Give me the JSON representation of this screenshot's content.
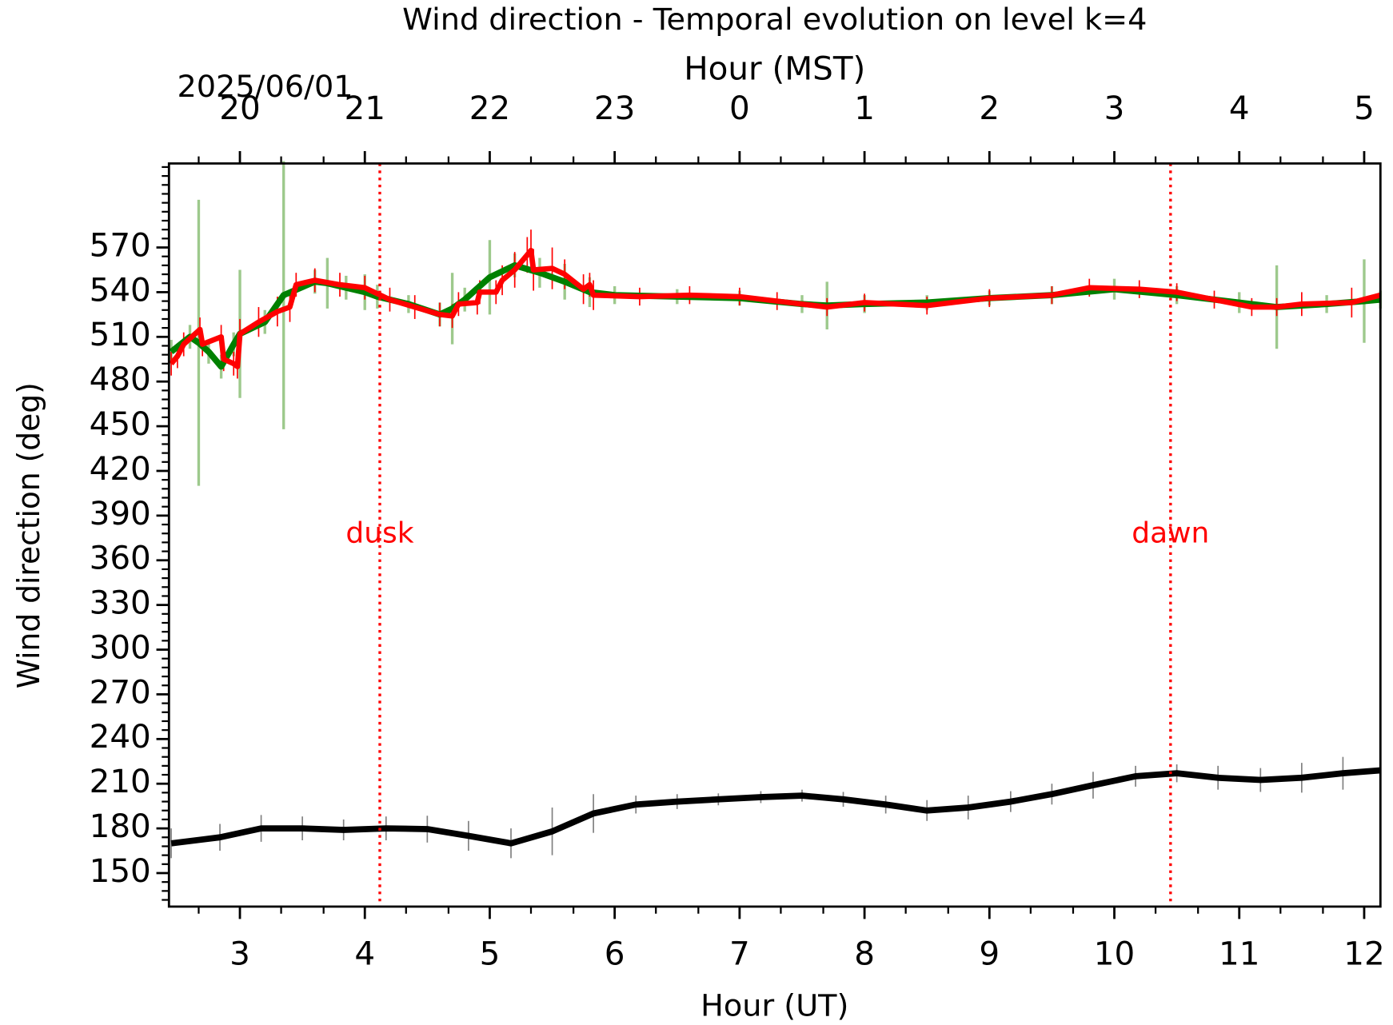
{
  "chart_data": {
    "type": "line",
    "title": "Wind direction - Temporal evolution on level k=4",
    "xlabel": "Hour (UT)",
    "x2label": "Hour (MST)",
    "date_label": "2025/06/01",
    "ylabel": "Wind direction (deg)",
    "xlim": [
      2.432,
      12.13
    ],
    "ylim": [
      127.5,
      626.4
    ],
    "xticks": [
      3,
      4,
      5,
      6,
      7,
      8,
      9,
      10,
      11,
      12
    ],
    "x2ticks": [
      {
        "value": 3,
        "label": "20"
      },
      {
        "value": 4,
        "label": "21"
      },
      {
        "value": 5,
        "label": "22"
      },
      {
        "value": 6,
        "label": "23"
      },
      {
        "value": 7,
        "label": "0"
      },
      {
        "value": 8,
        "label": "1"
      },
      {
        "value": 9,
        "label": "2"
      },
      {
        "value": 10,
        "label": "3"
      },
      {
        "value": 11,
        "label": "4"
      },
      {
        "value": 12,
        "label": "5"
      }
    ],
    "xminorticks": [
      2.67,
      3.33,
      3.67,
      4.33,
      4.67,
      5.33,
      5.67,
      6.33,
      6.67,
      7.33,
      7.67,
      8.33,
      8.67,
      9.33,
      9.67,
      10.33,
      10.67,
      11.33,
      11.67
    ],
    "yticks": [
      150,
      180,
      210,
      240,
      270,
      300,
      330,
      360,
      390,
      420,
      450,
      480,
      510,
      540,
      570
    ],
    "yminorticks": [
      132,
      138,
      144,
      156,
      162,
      168,
      174,
      186,
      192,
      198,
      204,
      216,
      222,
      228,
      234,
      246,
      252,
      258,
      264,
      276,
      282,
      288,
      294,
      306,
      312,
      318,
      324,
      336,
      342,
      348,
      354,
      366,
      372,
      378,
      384,
      396,
      402,
      408,
      414,
      426,
      432,
      438,
      444,
      456,
      462,
      468,
      474,
      486,
      492,
      498,
      504,
      516,
      522,
      528,
      534,
      546,
      552,
      558,
      564,
      576,
      582,
      588,
      594,
      600,
      606,
      612,
      618,
      624
    ],
    "events": [
      {
        "name": "dusk",
        "x": 4.12,
        "color": "#ff0000"
      },
      {
        "name": "dawn",
        "x": 10.45,
        "color": "#ff0000"
      }
    ],
    "series": [
      {
        "color": "#000000",
        "error_color": "#808080",
        "width": 7,
        "x": [
          2.45,
          2.84,
          3.17,
          3.5,
          3.83,
          4.17,
          4.5,
          4.83,
          5.17,
          5.5,
          5.83,
          6.17,
          6.5,
          6.83,
          7.17,
          7.5,
          7.83,
          8.17,
          8.5,
          8.83,
          9.17,
          9.5,
          9.83,
          10.17,
          10.5,
          10.83,
          11.17,
          11.5,
          11.83,
          12.13
        ],
        "values": [
          170,
          174,
          180,
          180,
          179,
          180,
          179.5,
          175,
          170,
          178,
          190,
          196,
          198,
          199.5,
          201,
          202,
          199.5,
          196,
          192,
          194,
          198,
          203,
          209,
          215,
          217,
          214,
          212.5,
          214,
          217,
          219
        ],
        "errors": [
          10,
          9,
          9,
          8,
          7,
          8,
          9,
          10,
          10,
          16,
          13,
          6,
          5,
          4,
          4,
          4,
          5,
          6,
          7,
          8,
          7,
          7,
          9,
          7,
          6,
          8,
          8,
          10,
          11,
          8
        ]
      },
      {
        "color": "#008000",
        "error_color": "#9dc98c",
        "width": 7,
        "x": [
          2.45,
          2.6,
          2.67,
          2.75,
          2.85,
          2.95,
          3.0,
          3.2,
          3.35,
          3.6,
          3.7,
          3.85,
          4.0,
          4.1,
          4.35,
          4.6,
          4.7,
          4.8,
          5.0,
          5.2,
          5.4,
          5.6,
          5.8,
          6.0,
          6.5,
          7.0,
          7.5,
          7.7,
          8.0,
          8.5,
          9.0,
          9.5,
          10.0,
          10.5,
          11.0,
          11.3,
          11.7,
          12.0,
          12.13
        ],
        "values": [
          500,
          510,
          506,
          500,
          490,
          505,
          512,
          520,
          538,
          547,
          546,
          543,
          540,
          537,
          532,
          525,
          529,
          535,
          550,
          558,
          553,
          547,
          540,
          538,
          537,
          536,
          532,
          531,
          532,
          533,
          536,
          538,
          542,
          538,
          533,
          530,
          532,
          534,
          535
        ],
        "errors": [
          8,
          8,
          96,
          8,
          8,
          8,
          43,
          8,
          90,
          8,
          17,
          8,
          12,
          8,
          6,
          8,
          24,
          8,
          25,
          8,
          10,
          12,
          10,
          6,
          5,
          5,
          6,
          16,
          6,
          5,
          5,
          6,
          7,
          6,
          7,
          28,
          6,
          28,
          6
        ]
      },
      {
        "color": "#ff0000",
        "error_color": "#ff0000",
        "width": 6,
        "x": [
          2.45,
          2.5,
          2.55,
          2.68,
          2.7,
          2.85,
          2.87,
          2.95,
          2.98,
          3.0,
          3.15,
          3.3,
          3.4,
          3.45,
          3.6,
          3.8,
          4.0,
          4.2,
          4.4,
          4.6,
          4.7,
          4.75,
          4.9,
          4.92,
          5.05,
          5.1,
          5.2,
          5.3,
          5.33,
          5.35,
          5.5,
          5.6,
          5.75,
          5.8,
          5.83,
          6.2,
          6.6,
          7.0,
          7.3,
          7.7,
          8.0,
          8.5,
          9.0,
          9.5,
          9.8,
          10.2,
          10.5,
          10.8,
          11.1,
          11.3,
          11.5,
          11.9,
          12.13
        ],
        "values": [
          492,
          497,
          505,
          515,
          505,
          510,
          495,
          492,
          490,
          512,
          520,
          527,
          530,
          545,
          548,
          545,
          543,
          535,
          530,
          525,
          524,
          532,
          533,
          540,
          540,
          548,
          555,
          565,
          568,
          555,
          556,
          552,
          542,
          545,
          538,
          537,
          538,
          537,
          534,
          530,
          533,
          531,
          536,
          538,
          543,
          542,
          540,
          535,
          530,
          530,
          532,
          533,
          538
        ],
        "errors": [
          8,
          8,
          8,
          8,
          8,
          8,
          8,
          8,
          8,
          10,
          10,
          10,
          10,
          8,
          8,
          8,
          8,
          8,
          8,
          8,
          8,
          8,
          8,
          8,
          8,
          10,
          12,
          12,
          14,
          14,
          14,
          10,
          10,
          8,
          10,
          6,
          6,
          6,
          6,
          6,
          6,
          6,
          6,
          6,
          6,
          6,
          6,
          6,
          6,
          6,
          8,
          10,
          8
        ]
      }
    ]
  }
}
